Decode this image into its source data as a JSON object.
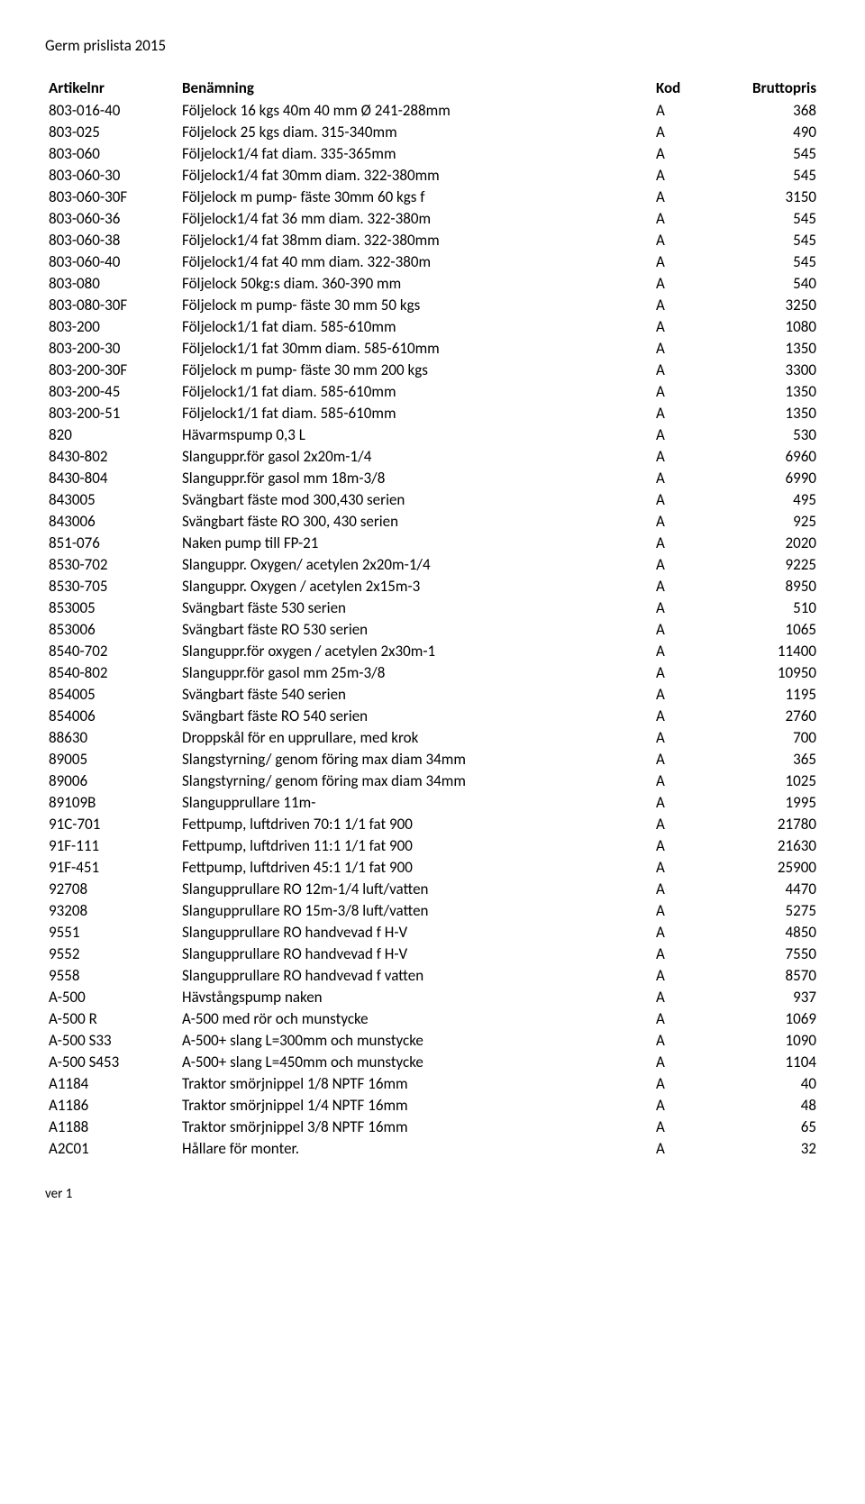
{
  "title": "Germ prislista 2015",
  "columns": {
    "artikelnr": "Artikelnr",
    "benamning": "Benämning",
    "kod": "Kod",
    "bruttopris": "Bruttopris"
  },
  "rows": [
    {
      "a": "803-016-40",
      "b": "Följelock 16 kgs 40m 40 mm Ø 241-288mm",
      "k": "A",
      "p": "368"
    },
    {
      "a": "803-025",
      "b": "Följelock 25 kgs diam. 315-340mm",
      "k": "A",
      "p": "490"
    },
    {
      "a": "803-060",
      "b": "Följelock1/4 fat diam. 335-365mm",
      "k": "A",
      "p": "545"
    },
    {
      "a": "803-060-30",
      "b": "Följelock1/4 fat 30mm diam. 322-380mm",
      "k": "A",
      "p": "545"
    },
    {
      "a": "803-060-30F",
      "b": "Följelock m pump- fäste 30mm 60  kgs f",
      "k": "A",
      "p": "3150"
    },
    {
      "a": "803-060-36",
      "b": "Följelock1/4 fat 36 mm diam. 322-380m",
      "k": "A",
      "p": "545"
    },
    {
      "a": "803-060-38",
      "b": "Följelock1/4 fat 38mm diam. 322-380mm",
      "k": "A",
      "p": "545"
    },
    {
      "a": "803-060-40",
      "b": "Följelock1/4 fat 40 mm diam. 322-380m",
      "k": "A",
      "p": "545"
    },
    {
      "a": "803-080",
      "b": "Följelock 50kg:s diam. 360-390 mm",
      "k": "A",
      "p": "540"
    },
    {
      "a": "803-080-30F",
      "b": "Följelock m pump- fäste 30 mm 50 kgs",
      "k": "A",
      "p": "3250"
    },
    {
      "a": "803-200",
      "b": "Följelock1/1 fat diam. 585-610mm",
      "k": "A",
      "p": "1080"
    },
    {
      "a": "803-200-30",
      "b": "Följelock1/1 fat 30mm diam. 585-610mm",
      "k": "A",
      "p": "1350"
    },
    {
      "a": "803-200-30F",
      "b": "Följelock m pump- fäste 30 mm 200 kgs",
      "k": "A",
      "p": "3300"
    },
    {
      "a": "803-200-45",
      "b": "Följelock1/1 fat diam. 585-610mm",
      "k": "A",
      "p": "1350"
    },
    {
      "a": "803-200-51",
      "b": "Följelock1/1 fat diam. 585-610mm",
      "k": "A",
      "p": "1350"
    },
    {
      "a": "820",
      "b": "Hävarmspump 0,3 L",
      "k": "A",
      "p": "530"
    },
    {
      "a": "8430-802",
      "b": "Slanguppr.för gasol 2x20m-1/4",
      "k": "A",
      "p": "6960"
    },
    {
      "a": "8430-804",
      "b": "Slanguppr.för gasol mm  18m-3/8",
      "k": "A",
      "p": "6990"
    },
    {
      "a": "843005",
      "b": "Svängbart fäste mod 300,430 serien",
      "k": "A",
      "p": "495"
    },
    {
      "a": "843006",
      "b": "Svängbart fäste RO 300, 430 serien",
      "k": "A",
      "p": "925"
    },
    {
      "a": "851-076",
      "b": "Naken pump till FP-21",
      "k": "A",
      "p": "2020"
    },
    {
      "a": "8530-702",
      "b": "Slanguppr. Oxygen/ acetylen  2x20m-1/4",
      "k": "A",
      "p": "9225"
    },
    {
      "a": "8530-705",
      "b": "Slanguppr. Oxygen / acetylen  2x15m-3",
      "k": "A",
      "p": "8950"
    },
    {
      "a": "853005",
      "b": "Svängbart fäste 530 serien",
      "k": "A",
      "p": "510"
    },
    {
      "a": "853006",
      "b": "Svängbart fäste RO 530 serien",
      "k": "A",
      "p": "1065"
    },
    {
      "a": "8540-702",
      "b": "Slanguppr.för oxygen / acetylen  2x30m-1",
      "k": "A",
      "p": "11400"
    },
    {
      "a": "8540-802",
      "b": "Slanguppr.för gasol mm  25m-3/8",
      "k": "A",
      "p": "10950"
    },
    {
      "a": "854005",
      "b": "Svängbart fäste 540 serien",
      "k": "A",
      "p": "1195"
    },
    {
      "a": "854006",
      "b": "Svängbart fäste RO 540 serien",
      "k": "A",
      "p": "2760"
    },
    {
      "a": "88630",
      "b": "Droppskål för en upprullare, med krok",
      "k": "A",
      "p": "700"
    },
    {
      "a": "89005",
      "b": "Slangstyrning/ genom föring max diam 34mm",
      "k": "A",
      "p": "365"
    },
    {
      "a": "89006",
      "b": "Slangstyrning/ genom föring max diam 34mm",
      "k": "A",
      "p": "1025"
    },
    {
      "a": "89109B",
      "b": "Slangupprullare 11m-",
      "k": "A",
      "p": "1995"
    },
    {
      "a": "91C-701",
      "b": "Fettpump, luftdriven 70:1 1/1 fat 900",
      "k": "A",
      "p": "21780"
    },
    {
      "a": "91F-111",
      "b": "Fettpump, luftdriven 11:1 1/1 fat 900",
      "k": "A",
      "p": "21630"
    },
    {
      "a": "91F-451",
      "b": "Fettpump, luftdriven 45:1 1/1 fat 900",
      "k": "A",
      "p": "25900"
    },
    {
      "a": "92708",
      "b": "Slangupprullare RO 12m-1/4 luft/vatten",
      "k": "A",
      "p": "4470"
    },
    {
      "a": "93208",
      "b": "Slangupprullare RO 15m-3/8 luft/vatten",
      "k": "A",
      "p": "5275"
    },
    {
      "a": "9551",
      "b": "Slangupprullare RO handvevad f H-V",
      "k": "A",
      "p": "4850"
    },
    {
      "a": "9552",
      "b": "Slangupprullare RO handvevad f H-V",
      "k": "A",
      "p": "7550"
    },
    {
      "a": "9558",
      "b": "Slangupprullare RO handvevad f vatten",
      "k": "A",
      "p": "8570"
    },
    {
      "a": "A-500",
      "b": "Hävstångspump naken",
      "k": "A",
      "p": "937"
    },
    {
      "a": "A-500 R",
      "b": "A-500 med rör och munstycke",
      "k": "A",
      "p": "1069"
    },
    {
      "a": "A-500 S33",
      "b": "A-500+ slang L=300mm och munstycke",
      "k": "A",
      "p": "1090"
    },
    {
      "a": "A-500 S453",
      "b": "A-500+ slang L=450mm och munstycke",
      "k": "A",
      "p": "1104"
    },
    {
      "a": "A1184",
      "b": "Traktor smörjnippel 1/8 NPTF  16mm",
      "k": "A",
      "p": "40"
    },
    {
      "a": "A1186",
      "b": "Traktor smörjnippel 1/4 NPTF  16mm",
      "k": "A",
      "p": "48"
    },
    {
      "a": "A1188",
      "b": "Traktor smörjnippel 3/8 NPTF  16mm",
      "k": "A",
      "p": "65"
    },
    {
      "a": "A2C01",
      "b": "Hållare för monter.",
      "k": "A",
      "p": "32"
    }
  ],
  "footer": "ver 1"
}
